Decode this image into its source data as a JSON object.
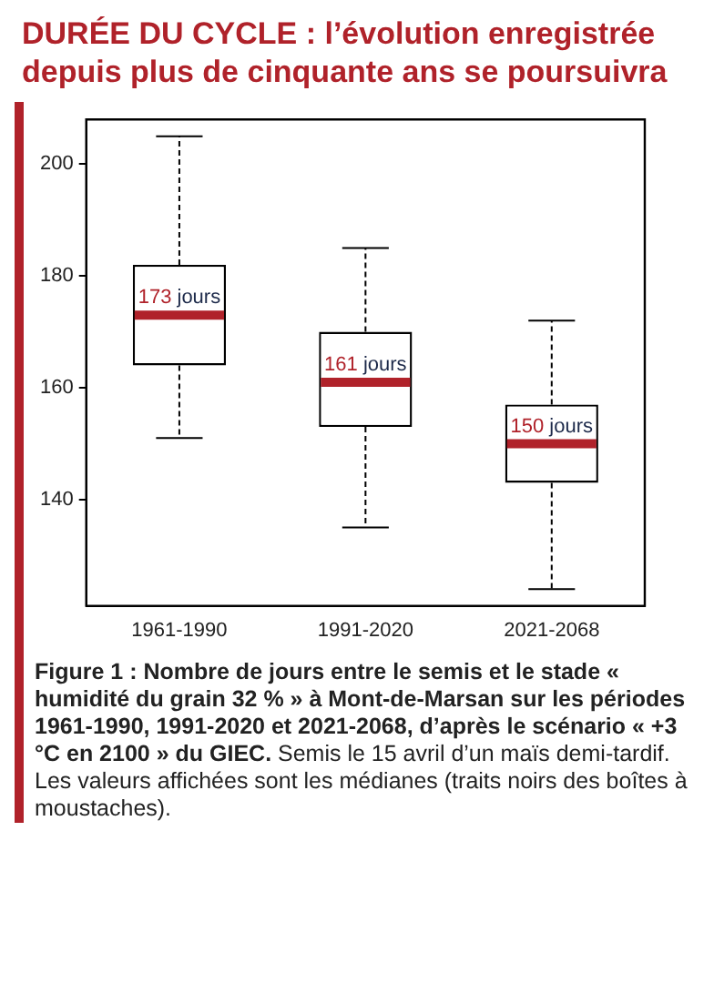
{
  "chart_data": {
    "type": "box",
    "title": "DURÉE DU CYCLE : l’évolution enregistrée depuis plus de cinquante ans se poursuivra",
    "categories": [
      "1961-1990",
      "1991-2020",
      "2021-2068"
    ],
    "boxes": [
      {
        "low": 151,
        "q1": 164,
        "median": 173,
        "q3": 182,
        "high": 205
      },
      {
        "low": 135,
        "q1": 153,
        "median": 161,
        "q3": 170,
        "high": 185
      },
      {
        "low": 124,
        "q1": 143,
        "median": 150,
        "q3": 157,
        "high": 172
      }
    ],
    "value_labels": [
      "173 jours",
      "161 jours",
      "150 jours"
    ],
    "ylim": [
      121,
      208
    ],
    "yticks": [
      140,
      160,
      180,
      200
    ],
    "grid": false,
    "annotations": [
      "Figure 1 : Nombre de jours entre le semis et le stade « humidité du grain 32 % » à Mont-de-Marsan sur les périodes 1961-1990, 1991-2020 et 2021-2068, d’après le scénario « +3 °C en 2100 » du GIEC.",
      "Semis le 15 avril d’un maïs demi-tardif. Les valeurs affichées sont les médianes (traits noirs des boîtes à moustaches)."
    ]
  }
}
